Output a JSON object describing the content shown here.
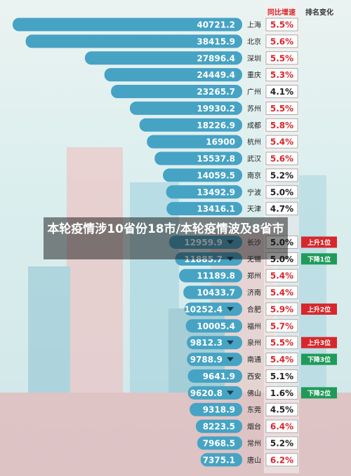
{
  "headline": "本轮疫情涉10省份18市/本轮疫情波及8省市",
  "chart_data": {
    "type": "bar",
    "orientation": "horizontal",
    "color": "#46a3c4",
    "categories": [
      "上海",
      "北京",
      "深圳",
      "重庆",
      "广州",
      "苏州",
      "成都",
      "杭州",
      "武汉",
      "南京",
      "宁波",
      "天津",
      "长沙",
      "无锡",
      "郑州",
      "济南",
      "合肥",
      "福州",
      "泉州",
      "南通",
      "西安",
      "佛山",
      "东莞",
      "烟台",
      "常州",
      "唐山"
    ],
    "values": [
      40721.2,
      38415.9,
      27896.4,
      24449.4,
      23265.7,
      19930.2,
      18226.9,
      16900,
      15537.8,
      14059.5,
      13492.9,
      13416.1,
      12959.9,
      11885.7,
      11189.8,
      10433.7,
      10252.4,
      10005.4,
      9812.3,
      9788.9,
      9641.9,
      9620.8,
      9318.9,
      8223.5,
      7968.5,
      7375.1
    ],
    "growth": {
      "header": "同比增速",
      "values": [
        5.5,
        5.6,
        5.5,
        5.3,
        4.1,
        5.5,
        5.8,
        5.4,
        5.6,
        5.2,
        5.0,
        4.7,
        5.0,
        5.0,
        5.4,
        5.4,
        5.9,
        5.7,
        5.5,
        5.4,
        5.1,
        1.6,
        4.5,
        6.4,
        5.2,
        6.2
      ],
      "value_labels": [
        "5.5%",
        "5.6%",
        "5.5%",
        "5.3%",
        "4.1%",
        "5.5%",
        "5.8%",
        "5.4%",
        "5.6%",
        "5.2%",
        "5.0%",
        "4.7%",
        "5.0%",
        "5.0%",
        "5.4%",
        "5.4%",
        "5.9%",
        "5.7%",
        "5.5%",
        "5.4%",
        "5.1%",
        "1.6%",
        "4.5%",
        "6.4%",
        "5.2%",
        "6.2%"
      ],
      "colors": [
        "#d8272c",
        "#d8272c",
        "#d8272c",
        "#d8272c",
        "#222222",
        "#d8272c",
        "#d8272c",
        "#d8272c",
        "#d8272c",
        "#222222",
        "#222222",
        "#222222",
        "#222222",
        "#222222",
        "#d8272c",
        "#d8272c",
        "#d8272c",
        "#d8272c",
        "#d8272c",
        "#d8272c",
        "#222222",
        "#222222",
        "#222222",
        "#d8272c",
        "#222222",
        "#d8272c"
      ]
    },
    "rank_change": {
      "header": "排名变化",
      "labels": [
        null,
        null,
        null,
        null,
        null,
        null,
        null,
        null,
        null,
        null,
        null,
        null,
        "上升1位",
        "下降1位",
        null,
        null,
        "上升2位",
        null,
        "上升3位",
        "下降3位",
        null,
        "下降2位",
        null,
        null,
        null,
        null
      ],
      "colors": [
        null,
        null,
        null,
        null,
        null,
        null,
        null,
        null,
        null,
        null,
        null,
        null,
        "#d8272c",
        "#1f9a5a",
        null,
        null,
        "#d8272c",
        null,
        "#d8272c",
        "#1f9a5a",
        null,
        "#1f9a5a",
        null,
        null,
        null,
        null
      ]
    }
  }
}
